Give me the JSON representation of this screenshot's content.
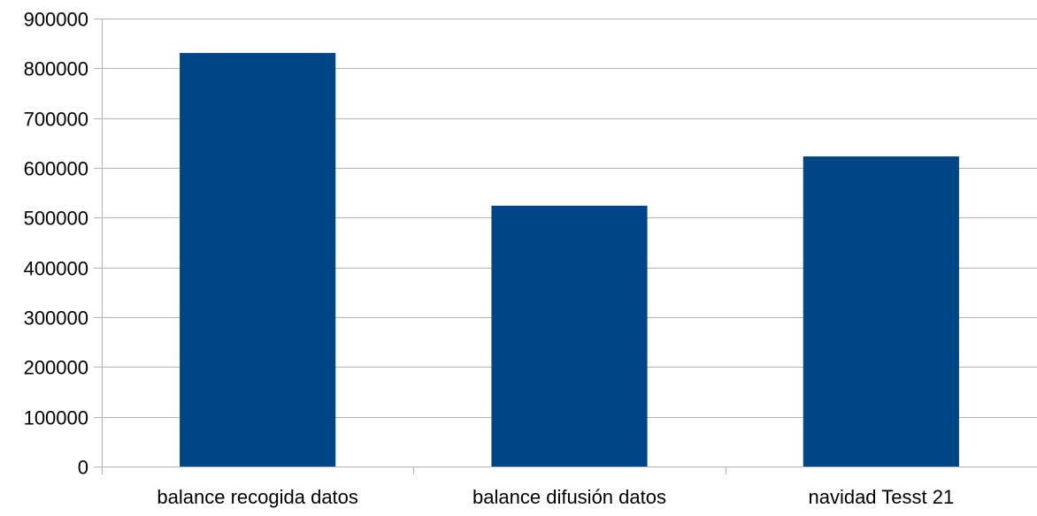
{
  "chart_data": {
    "type": "bar",
    "categories": [
      "balance recogida datos",
      "balance difusión datos",
      "navidad Tesst 21"
    ],
    "values": [
      831000,
      524000,
      623000
    ],
    "ylim": [
      0,
      900000
    ],
    "yticks": [
      0,
      100000,
      200000,
      300000,
      400000,
      500000,
      600000,
      700000,
      800000,
      900000
    ],
    "grid": true,
    "legend": "none",
    "bar_color": "#004586"
  }
}
